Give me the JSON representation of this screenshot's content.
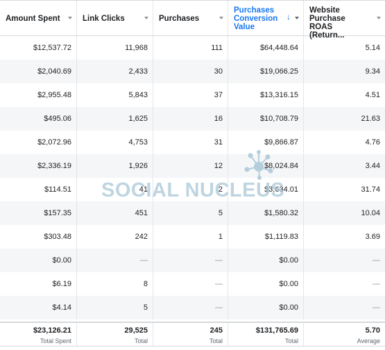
{
  "columns": [
    {
      "label": "Amount Spent"
    },
    {
      "label": "Link Clicks"
    },
    {
      "label": "Purchases"
    },
    {
      "label": "Purchases Conversion Value",
      "sorted": "desc"
    },
    {
      "label": "Website Purchase ROAS (Return..."
    }
  ],
  "rows": [
    [
      "$12,537.72",
      "11,968",
      "111",
      "$64,448.64",
      "5.14"
    ],
    [
      "$2,040.69",
      "2,433",
      "30",
      "$19,066.25",
      "9.34"
    ],
    [
      "$2,955.48",
      "5,843",
      "37",
      "$13,316.15",
      "4.51"
    ],
    [
      "$495.06",
      "1,625",
      "16",
      "$10,708.79",
      "21.63"
    ],
    [
      "$2,072.96",
      "4,753",
      "31",
      "$9,866.87",
      "4.76"
    ],
    [
      "$2,336.19",
      "1,926",
      "12",
      "$8,024.84",
      "3.44"
    ],
    [
      "$114.51",
      "41",
      "2",
      "$3,634.01",
      "31.74"
    ],
    [
      "$157.35",
      "451",
      "5",
      "$1,580.32",
      "10.04"
    ],
    [
      "$303.48",
      "242",
      "1",
      "$1,119.83",
      "3.69"
    ],
    [
      "$0.00",
      "—",
      "—",
      "$0.00",
      "—"
    ],
    [
      "$6.19",
      "8",
      "—",
      "$0.00",
      "—"
    ],
    [
      "$4.14",
      "5",
      "—",
      "$0.00",
      "—"
    ]
  ],
  "totals": [
    {
      "value": "$23,126.21",
      "label": "Total Spent"
    },
    {
      "value": "29,525",
      "label": "Total"
    },
    {
      "value": "245",
      "label": "Total"
    },
    {
      "value": "$131,765.69",
      "label": "Total"
    },
    {
      "value": "5.70",
      "label": "Average"
    }
  ],
  "watermark": {
    "text": "SOCIAL NUCLEUS",
    "icon": "nucleus-logo-icon",
    "color": "#a9c8d8"
  },
  "colors": {
    "accent": "#1877f2",
    "alt_row": "#f5f6f7",
    "border": "#e3e5e8"
  }
}
